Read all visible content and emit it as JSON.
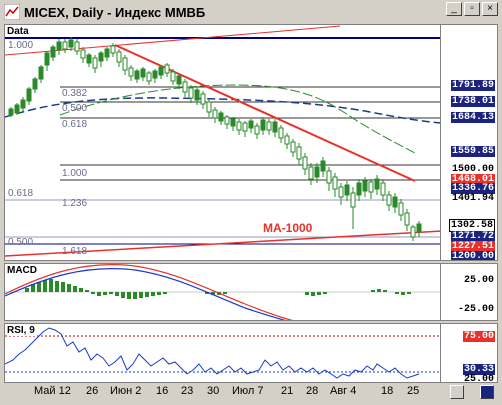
{
  "window": {
    "title": "MICEX, Daily - Индекс ММВБ",
    "minimize": "_",
    "restore": "▫",
    "close": "×"
  },
  "panes": {
    "price": {
      "label": "Data"
    },
    "macd": {
      "label": "MACD"
    },
    "rsi": {
      "label": "RSI, 9"
    }
  },
  "fib_levels": [
    "1.000",
    "0.382",
    "0.500",
    "0.618",
    "1.000",
    "0.618",
    "1.236",
    "0.500",
    "1.618"
  ],
  "ma_label": "MA-1000",
  "price_axis": [
    "1791.89",
    "1738.01",
    "1684.13",
    "1559.85",
    "1500.00",
    "1468.01",
    "1336.76",
    "1401.94",
    "1302.58",
    "1271.72",
    "1227.51",
    "1200.00"
  ],
  "macd_axis": [
    "25.00",
    "-25.00"
  ],
  "rsi_axis": [
    "75.00",
    "30.33",
    "25.00"
  ],
  "dates": [
    "Май 12",
    "26",
    "Июн 2",
    "16",
    "23",
    "30",
    "Июл 7",
    "21",
    "28",
    "Авг 4",
    "18",
    "25"
  ],
  "colors": {
    "trend": "#e8312a",
    "ma_dash": "#1a3a8a",
    "ma_green": "#2a8a2a",
    "candle": "#2a8a2a",
    "rsi": "#1a3ac8",
    "label_blue": "#1a237e",
    "label_red": "#e8312a"
  }
}
